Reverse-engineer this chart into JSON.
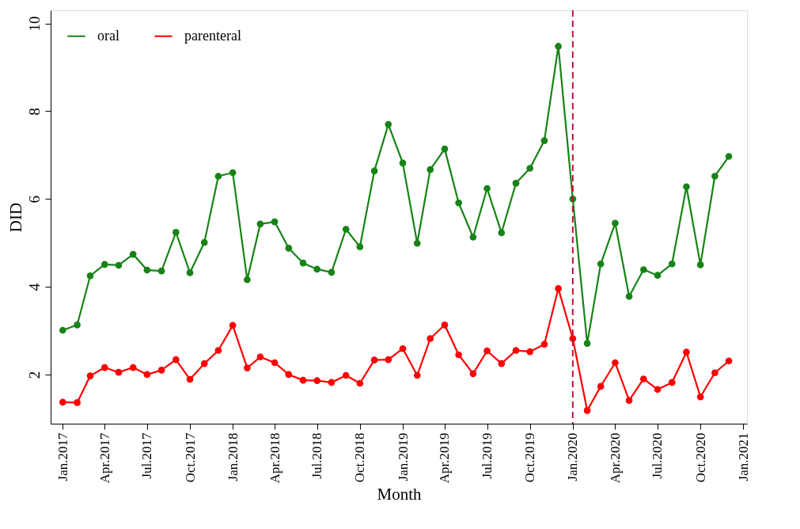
{
  "chart_data": {
    "type": "line",
    "xlabel": "Month",
    "ylabel": "DID",
    "x": [
      "2017-01",
      "2017-02",
      "2017-03",
      "2017-04",
      "2017-05",
      "2017-06",
      "2017-07",
      "2017-08",
      "2017-09",
      "2017-10",
      "2017-11",
      "2017-12",
      "2018-01",
      "2018-02",
      "2018-03",
      "2018-04",
      "2018-05",
      "2018-06",
      "2018-07",
      "2018-08",
      "2018-09",
      "2018-10",
      "2018-11",
      "2018-12",
      "2019-01",
      "2019-02",
      "2019-03",
      "2019-04",
      "2019-05",
      "2019-06",
      "2019-07",
      "2019-08",
      "2019-09",
      "2019-10",
      "2019-11",
      "2019-12",
      "2020-01",
      "2020-02",
      "2020-03",
      "2020-04",
      "2020-05",
      "2020-06",
      "2020-07",
      "2020-08",
      "2020-09",
      "2020-10",
      "2020-11",
      "2020-12"
    ],
    "series": [
      {
        "name": "oral",
        "color": "#178317",
        "values": [
          3.01,
          3.13,
          4.25,
          4.51,
          4.49,
          4.74,
          4.38,
          4.36,
          5.24,
          4.32,
          5.01,
          6.52,
          6.6,
          4.16,
          5.43,
          5.48,
          4.88,
          4.54,
          4.4,
          4.33,
          5.31,
          4.91,
          6.64,
          7.7,
          6.82,
          4.99,
          6.67,
          7.14,
          5.91,
          5.13,
          6.24,
          5.23,
          6.36,
          6.7,
          7.33,
          9.48,
          6.0,
          2.71,
          4.52,
          5.45,
          3.78,
          4.39,
          4.26,
          4.52,
          6.28,
          4.5,
          6.52,
          6.97
        ]
      },
      {
        "name": "parenteral",
        "color": "#ff0000",
        "values": [
          1.37,
          1.36,
          1.97,
          2.16,
          2.05,
          2.16,
          2.0,
          2.1,
          2.34,
          1.89,
          2.25,
          2.55,
          3.12,
          2.15,
          2.4,
          2.27,
          2.0,
          1.87,
          1.86,
          1.82,
          1.98,
          1.8,
          2.33,
          2.34,
          2.59,
          1.98,
          2.82,
          3.13,
          2.45,
          2.02,
          2.54,
          2.25,
          2.55,
          2.52,
          2.69,
          3.96,
          2.82,
          1.18,
          1.73,
          2.27,
          1.41,
          1.9,
          1.66,
          1.82,
          2.51,
          1.49,
          2.04,
          2.31
        ]
      }
    ],
    "xlim": [
      "2016-12-06",
      "2021-01-09"
    ],
    "xticks": [
      {
        "value": "2017-01",
        "label": "Jan.2017"
      },
      {
        "value": "2017-04",
        "label": "Apr.2017"
      },
      {
        "value": "2017-07",
        "label": "Jul.2017"
      },
      {
        "value": "2017-10",
        "label": "Oct.2017"
      },
      {
        "value": "2018-01",
        "label": "Jan.2018"
      },
      {
        "value": "2018-04",
        "label": "Apr.2018"
      },
      {
        "value": "2018-07",
        "label": "Jul.2018"
      },
      {
        "value": "2018-10",
        "label": "Oct.2018"
      },
      {
        "value": "2019-01",
        "label": "Jan.2019"
      },
      {
        "value": "2019-04",
        "label": "Apr.2019"
      },
      {
        "value": "2019-07",
        "label": "Jul.2019"
      },
      {
        "value": "2019-10",
        "label": "Oct.2019"
      },
      {
        "value": "2020-01",
        "label": "Jan.2020"
      },
      {
        "value": "2020-04",
        "label": "Apr.2020"
      },
      {
        "value": "2020-07",
        "label": "Jul.2020"
      },
      {
        "value": "2020-10",
        "label": "Oct.2020"
      },
      {
        "value": "2021-01",
        "label": "Jan.2021"
      }
    ],
    "ylim": [
      0.88,
      10.3
    ],
    "yticks": [
      2,
      4,
      6,
      8,
      10
    ],
    "ref_lines": [
      {
        "axis": "x",
        "value": "2020-01",
        "color": "#c0143c",
        "line_style": "dashed"
      }
    ],
    "legend": "top left",
    "marker": "circle",
    "line_style": "solid",
    "grid": false
  }
}
